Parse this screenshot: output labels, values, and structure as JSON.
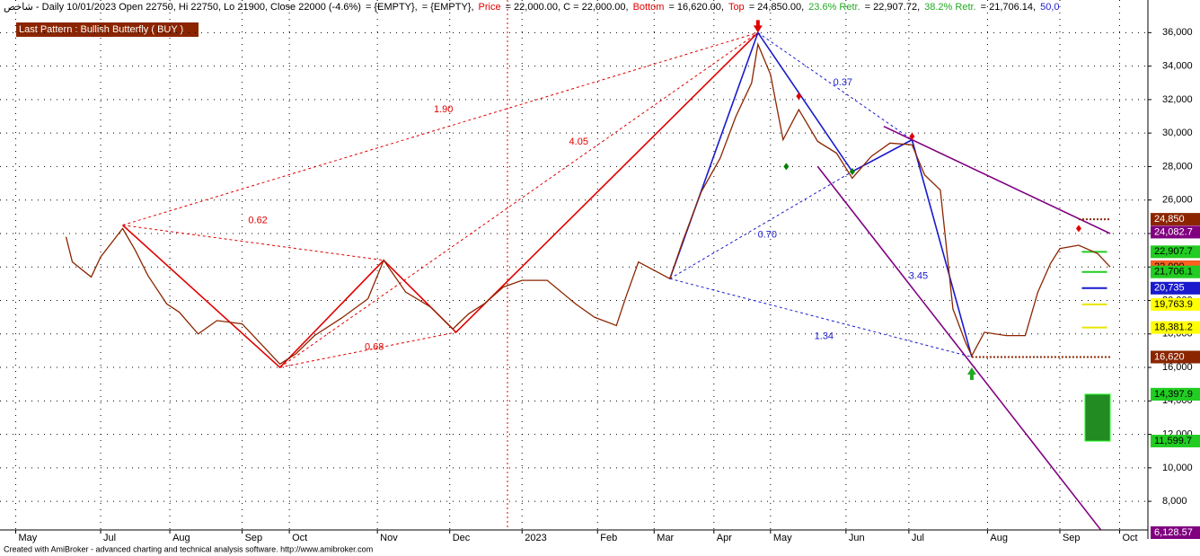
{
  "chart_data": {
    "type": "line",
    "header": [
      {
        "text": "شاخص - Daily 10/01/2023 Open 22750, Hi 22750, Lo 21900, Close 22000 (-4.6%)",
        "color": "#000000"
      },
      {
        "text": "= {EMPTY},",
        "color": "#000000"
      },
      {
        "text": "= {EMPTY},",
        "color": "#000000"
      },
      {
        "text": "Price",
        "color": "#e00000"
      },
      {
        "text": "= 22,000.00, C = 22,000.00,",
        "color": "#000000"
      },
      {
        "text": "Bottom",
        "color": "#e00000"
      },
      {
        "text": "= 16,620.00,",
        "color": "#000000"
      },
      {
        "text": "Top",
        "color": "#e00000"
      },
      {
        "text": "= 24,850.00,",
        "color": "#000000"
      },
      {
        "text": "23.6% Retr.",
        "color": "#22aa22"
      },
      {
        "text": "= 22,907.72,",
        "color": "#000000"
      },
      {
        "text": "38.2% Retr.",
        "color": "#22aa22"
      },
      {
        "text": "= 21,706.14,",
        "color": "#000000"
      },
      {
        "text": "50,0",
        "color": "#2222cc"
      }
    ],
    "pattern_label": "Last Pattern : Bullish Butterfly ( BUY )",
    "footer": "Created with AmiBroker - advanced charting and technical analysis software. http://www.amibroker.com",
    "xlim": [
      0,
      365
    ],
    "ylim": [
      6290,
      37950
    ],
    "xticks": [
      {
        "value": 5,
        "label": "May"
      },
      {
        "value": 32,
        "label": "Jul"
      },
      {
        "value": 54,
        "label": "Aug"
      },
      {
        "value": 77,
        "label": "Sep"
      },
      {
        "value": 92,
        "label": "Oct"
      },
      {
        "value": 120,
        "label": "Nov"
      },
      {
        "value": 143,
        "label": "Dec"
      },
      {
        "value": 166,
        "label": "2023"
      },
      {
        "value": 190,
        "label": "Feb"
      },
      {
        "value": 208,
        "label": "Mar"
      },
      {
        "value": 227,
        "label": "Apr"
      },
      {
        "value": 245,
        "label": "May"
      },
      {
        "value": 269,
        "label": "Jun"
      },
      {
        "value": 289,
        "label": "Jul"
      },
      {
        "value": 314,
        "label": "Aug"
      },
      {
        "value": 337,
        "label": "Sep"
      },
      {
        "value": 356,
        "label": "Oct"
      }
    ],
    "yticks": [
      {
        "value": 8000,
        "label": "8,000"
      },
      {
        "value": 10000,
        "label": "10,000"
      },
      {
        "value": 12000,
        "label": "12,000"
      },
      {
        "value": 14000,
        "label": "14,000"
      },
      {
        "value": 16000,
        "label": "16,000"
      },
      {
        "value": 18000,
        "label": "18,000"
      },
      {
        "value": 20000,
        "label": "20,000"
      },
      {
        "value": 22000,
        "label": "22,000"
      },
      {
        "value": 24000,
        "label": "24,000"
      },
      {
        "value": 26000,
        "label": "26,000"
      },
      {
        "value": 28000,
        "label": "28,000"
      },
      {
        "value": 30000,
        "label": "30,000"
      },
      {
        "value": 32000,
        "label": "32,000"
      },
      {
        "value": 34000,
        "label": "34,000"
      },
      {
        "value": 36000,
        "label": "36,000"
      }
    ],
    "grid": true,
    "x": [
      21,
      23,
      29,
      32,
      39,
      43,
      47,
      53,
      57,
      63,
      69,
      77,
      83,
      89,
      94,
      100,
      109,
      117,
      122,
      129,
      137,
      144,
      149,
      154,
      160,
      166,
      174,
      183,
      189,
      196,
      199,
      203,
      209,
      213,
      217,
      223,
      229,
      234,
      239,
      241,
      245,
      249,
      254,
      260,
      266,
      271,
      277,
      283,
      290,
      294,
      299,
      303,
      307,
      309,
      313,
      320,
      326,
      330,
      334,
      337,
      343,
      349,
      353
    ],
    "series": [
      {
        "color": "#8b2500",
        "values": [
          23800,
          22300,
          21400,
          22600,
          24300,
          23000,
          21500,
          19800,
          19300,
          18000,
          18800,
          18600,
          17400,
          16200,
          16800,
          17900,
          19000,
          20100,
          22400,
          20500,
          19600,
          18300,
          19200,
          19800,
          20800,
          21200,
          21200,
          19800,
          19000,
          18500,
          20200,
          22300,
          21700,
          21300,
          23500,
          26500,
          28500,
          31000,
          33000,
          35300,
          33500,
          29600,
          31400,
          29500,
          28800,
          27300,
          28600,
          29400,
          29300,
          27500,
          26600,
          19500,
          17500,
          16700,
          18100,
          17900,
          17900,
          20500,
          22200,
          23100,
          23300,
          22800,
          22000
        ]
      }
    ],
    "patterns": [
      {
        "color": "#e00000",
        "dash": false,
        "x": [
          39,
          89,
          122,
          145,
          241
        ],
        "y": [
          24500,
          16000,
          22400,
          18100,
          36000
        ]
      },
      {
        "color": "#e00000",
        "dash": true,
        "x": [
          39,
          241
        ],
        "y": [
          24500,
          36000
        ]
      },
      {
        "color": "#e00000",
        "dash": true,
        "x": [
          39,
          122
        ],
        "y": [
          24500,
          22400
        ]
      },
      {
        "color": "#e00000",
        "dash": true,
        "x": [
          89,
          145
        ],
        "y": [
          16000,
          18100
        ]
      },
      {
        "color": "#e00000",
        "dash": true,
        "x": [
          89,
          241
        ],
        "y": [
          16000,
          36000
        ]
      },
      {
        "color": "#1a1acc",
        "dash": false,
        "x": [
          213,
          241,
          271,
          290,
          309
        ],
        "y": [
          21300,
          36000,
          27700,
          29600,
          16620
        ]
      },
      {
        "color": "#1a1acc",
        "dash": true,
        "x": [
          213,
          271
        ],
        "y": [
          21300,
          27700
        ]
      },
      {
        "color": "#1a1acc",
        "dash": true,
        "x": [
          241,
          290
        ],
        "y": [
          36000,
          29600
        ]
      },
      {
        "color": "#1a1acc",
        "dash": true,
        "x": [
          213,
          309
        ],
        "y": [
          21300,
          16620
        ]
      },
      {
        "color": "#800080",
        "dash": false,
        "x": [
          281,
          353
        ],
        "y": [
          30400,
          24000
        ]
      },
      {
        "color": "#800080",
        "dash": false,
        "x": [
          260,
          350
        ],
        "y": [
          28000,
          6300
        ]
      }
    ],
    "annotations": [
      {
        "text": "1.90",
        "x": 141,
        "y": 31400,
        "color": "#e00000"
      },
      {
        "text": "4.05",
        "x": 184,
        "y": 29460,
        "color": "#e00000"
      },
      {
        "text": "0.62",
        "x": 82,
        "y": 24760,
        "color": "#e00000"
      },
      {
        "text": "0.68",
        "x": 119,
        "y": 17210,
        "color": "#e00000"
      },
      {
        "text": "0.37",
        "x": 268,
        "y": 33000,
        "color": "#1a1acc"
      },
      {
        "text": "0.70",
        "x": 244,
        "y": 23920,
        "color": "#1a1acc"
      },
      {
        "text": "3.45",
        "x": 292,
        "y": 21440,
        "color": "#1a1acc"
      },
      {
        "text": "1.34",
        "x": 262,
        "y": 17850,
        "color": "#1a1acc"
      }
    ],
    "markers": [
      {
        "shape": "down",
        "x": 241,
        "y": 36000,
        "color": "#e00000"
      },
      {
        "shape": "up",
        "x": 309,
        "y": 16000,
        "color": "#22aa22"
      },
      {
        "shape": "diamond",
        "x": 254,
        "y": 32200,
        "color": "#e00000"
      },
      {
        "shape": "diamond",
        "x": 290,
        "y": 29800,
        "color": "#e00000"
      },
      {
        "shape": "diamond",
        "x": 343,
        "y": 24300,
        "color": "#e00000"
      },
      {
        "shape": "diamond",
        "x": 250,
        "y": 28000,
        "color": "#008000"
      },
      {
        "shape": "diamond",
        "x": 271,
        "y": 27700,
        "color": "#008000"
      }
    ],
    "levels": [
      {
        "value": 24850,
        "color": "#8b2500",
        "x": [
          343,
          353
        ]
      },
      {
        "value": 16620,
        "color": "#8b2500",
        "x": [
          309,
          353
        ]
      },
      {
        "value": 22907.7,
        "color": "#22cc22",
        "x": [
          344,
          352
        ]
      },
      {
        "value": 21706.1,
        "color": "#22cc22",
        "x": [
          344,
          352
        ]
      },
      {
        "value": 20735,
        "color": "#1a1acc",
        "x": [
          344,
          352
        ]
      },
      {
        "value": 19763.9,
        "color": "#e6e600",
        "x": [
          344,
          352
        ]
      },
      {
        "value": 18381.2,
        "color": "#e6e600",
        "x": [
          344,
          352
        ]
      }
    ],
    "zone": {
      "top": 14397.9,
      "bottom": 11599.7,
      "x": [
        345,
        353
      ],
      "color": "#228b22"
    },
    "price_labels": [
      {
        "value": 24850,
        "label": "24,850",
        "bg": "#8b2500",
        "fg": "#ffffff"
      },
      {
        "value": 24082.7,
        "label": "24,082.7",
        "bg": "#800080",
        "fg": "#ffffff"
      },
      {
        "value": 22907.7,
        "label": "22,907.7",
        "bg": "#22cc22",
        "fg": "#000000"
      },
      {
        "value": 22000,
        "label": "22,000",
        "bg": "#000000",
        "fg": "#ffffff"
      },
      {
        "value": 22000,
        "label": "22,000",
        "bg": "#e00000",
        "fg": "#000000"
      },
      {
        "value": 22000,
        "label": "22,000",
        "bg": "#ff6020",
        "fg": "#000000"
      },
      {
        "value": 21706.1,
        "label": "21,706.1",
        "bg": "#22cc22",
        "fg": "#000000"
      },
      {
        "value": 20735,
        "label": "20,735",
        "bg": "#1a1acc",
        "fg": "#ffffff"
      },
      {
        "value": 19763.9,
        "label": "19,763.9",
        "bg": "#ffff00",
        "fg": "#000000"
      },
      {
        "value": 18381.2,
        "label": "18,381.2",
        "bg": "#ffff00",
        "fg": "#000000"
      },
      {
        "value": 16620,
        "label": "16,620",
        "bg": "#8b2500",
        "fg": "#ffffff"
      },
      {
        "value": 14397.9,
        "label": "14,397.9",
        "bg": "#22cc22",
        "fg": "#000000"
      },
      {
        "value": 14397.9,
        "label": "14,397.9",
        "bg": "#22cc22",
        "fg": "#000000"
      },
      {
        "value": 11599.7,
        "label": "11,599.7",
        "bg": "#22cc22",
        "fg": "#000000"
      },
      {
        "value": 6128.57,
        "label": "6,128.57",
        "bg": "#800080",
        "fg": "#ffffff"
      }
    ]
  }
}
